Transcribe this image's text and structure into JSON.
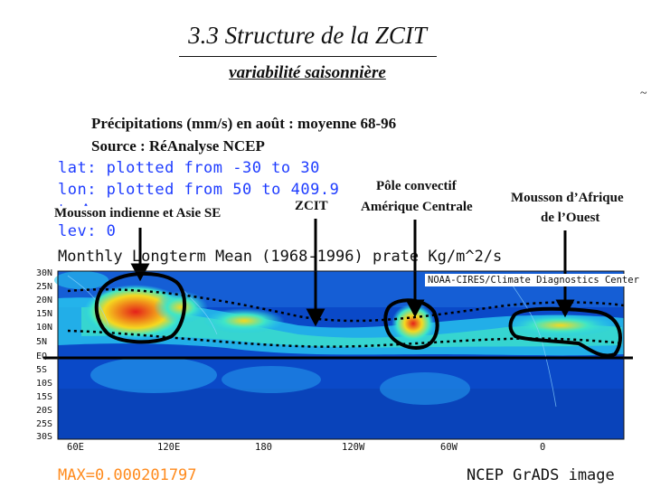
{
  "slide": {
    "title": "3.3 Structure de la ZCIT",
    "subtitle": "variabilité saisonnière",
    "corner_mark": "~",
    "description_line1": "Précipitations (mm/s) en août : moyenne 68-96",
    "description_line2": "Source :  RéAnalyse NCEP"
  },
  "plot_meta": {
    "lat": "lat: plotted from -30 to 30",
    "lon": "lon: plotted from 50 to 409.9",
    "time_fragment": "t: Aug",
    "lev": "lev: 0"
  },
  "annotations": {
    "mousson_indienne": "Mousson indienne et Asie SE",
    "zcit": "ZCIT",
    "pole_line1": "Pôle convectif",
    "pole_line2": "Amérique Centrale",
    "afrique_line1": "Mousson d’Afrique",
    "afrique_line2": "de l’Ouest"
  },
  "map": {
    "title": "Monthly Longterm Mean (1968-1996) prate Kg/m^2/s",
    "credit": "NOAA-CIRES/Climate Diagnostics Center",
    "lat_ticks": [
      "30N",
      "25N",
      "20N",
      "15N",
      "10N",
      "5N",
      "EQ",
      "5S",
      "10S",
      "15S",
      "20S",
      "25S",
      "30S"
    ],
    "lon_ticks": [
      "60E",
      "120E",
      "180",
      "120W",
      "60W",
      "0"
    ],
    "max_label": "MAX=0.000201797",
    "footer": "NCEP GrADS image",
    "colors": {
      "ocean_low": "#0a49c8",
      "ocean_mid": "#1f6fe0",
      "moist": "#28c8f0",
      "wet": "#3fe6c6",
      "heavy": "#f5d820",
      "max": "#e4201a",
      "overlay": "#000000"
    }
  }
}
